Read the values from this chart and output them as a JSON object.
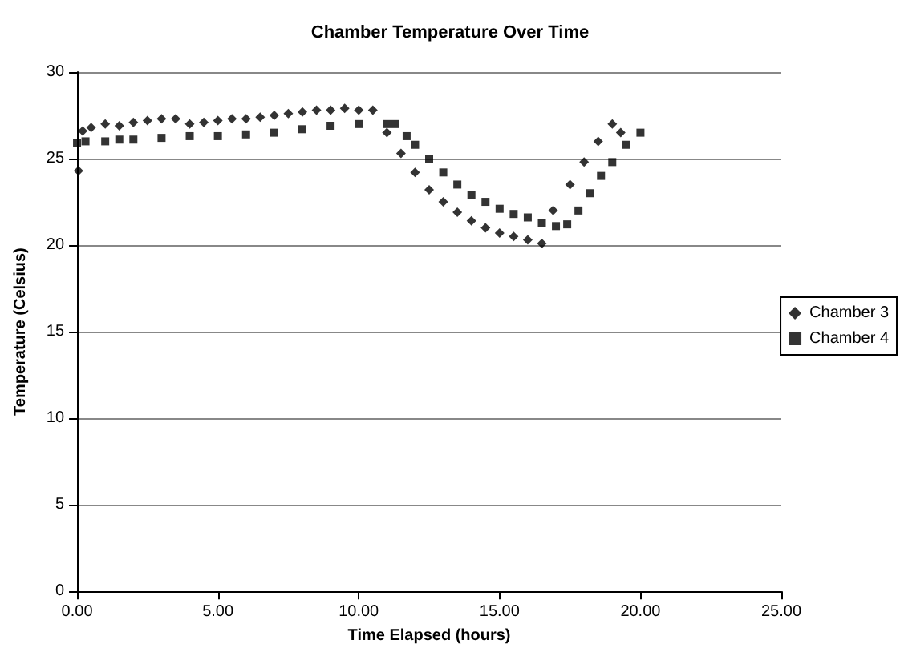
{
  "chart_data": {
    "type": "scatter",
    "title": "Chamber Temperature Over Time",
    "xlabel": "Time Elapsed (hours)",
    "ylabel": "Temperature (Celsius)",
    "xlim": [
      0,
      25
    ],
    "xticks": [
      {
        "value": 0,
        "label": "0.00"
      },
      {
        "value": 5,
        "label": "5.00"
      },
      {
        "value": 10,
        "label": "10.00"
      },
      {
        "value": 15,
        "label": "15.00"
      },
      {
        "value": 20,
        "label": "20.00"
      },
      {
        "value": 25,
        "label": "25.00"
      }
    ],
    "ylim": [
      0,
      30
    ],
    "yticks": [
      0,
      5,
      10,
      15,
      20,
      25,
      30
    ],
    "grid": "y",
    "legend": "right",
    "series": [
      {
        "name": "Chamber 3",
        "color": "#000000",
        "marker": "diamond",
        "x": [
          0.05,
          0.2,
          0.5,
          1,
          1.5,
          2,
          2.5,
          3,
          3.5,
          4,
          4.5,
          5,
          5.5,
          6,
          6.5,
          7,
          7.5,
          8,
          8.5,
          9,
          9.5,
          10,
          10.5,
          11,
          11.5,
          12,
          12.5,
          13,
          13.5,
          14,
          14.5,
          15,
          15.5,
          16,
          16.5,
          16.9,
          17.5,
          18,
          18.5,
          19,
          19.3
        ],
        "values": [
          24.3,
          26.6,
          26.8,
          27.0,
          26.9,
          27.1,
          27.2,
          27.3,
          27.3,
          27.0,
          27.1,
          27.2,
          27.3,
          27.3,
          27.4,
          27.5,
          27.6,
          27.7,
          27.8,
          27.8,
          27.9,
          27.8,
          27.8,
          26.5,
          25.3,
          24.2,
          23.2,
          22.5,
          21.9,
          21.4,
          21.0,
          20.7,
          20.5,
          20.3,
          20.1,
          22.0,
          23.5,
          24.8,
          26.0,
          27.0,
          26.5
        ]
      },
      {
        "name": "Chamber 4",
        "color": "#000000",
        "marker": "square",
        "x": [
          0,
          0.3,
          1,
          1.5,
          2,
          3,
          4,
          5,
          6,
          7,
          8,
          9,
          10,
          11,
          11.3,
          11.7,
          12,
          12.5,
          13,
          13.5,
          14,
          14.5,
          15,
          15.5,
          16,
          16.5,
          17,
          17.4,
          17.8,
          18.2,
          18.6,
          19,
          19.5,
          20
        ],
        "values": [
          25.9,
          26.0,
          26.0,
          26.1,
          26.1,
          26.2,
          26.3,
          26.3,
          26.4,
          26.5,
          26.7,
          26.9,
          27.0,
          27.0,
          27.0,
          26.3,
          25.8,
          25.0,
          24.2,
          23.5,
          22.9,
          22.5,
          22.1,
          21.8,
          21.6,
          21.3,
          21.1,
          21.2,
          22.0,
          23.0,
          24.0,
          24.8,
          25.8,
          26.5
        ]
      }
    ]
  }
}
